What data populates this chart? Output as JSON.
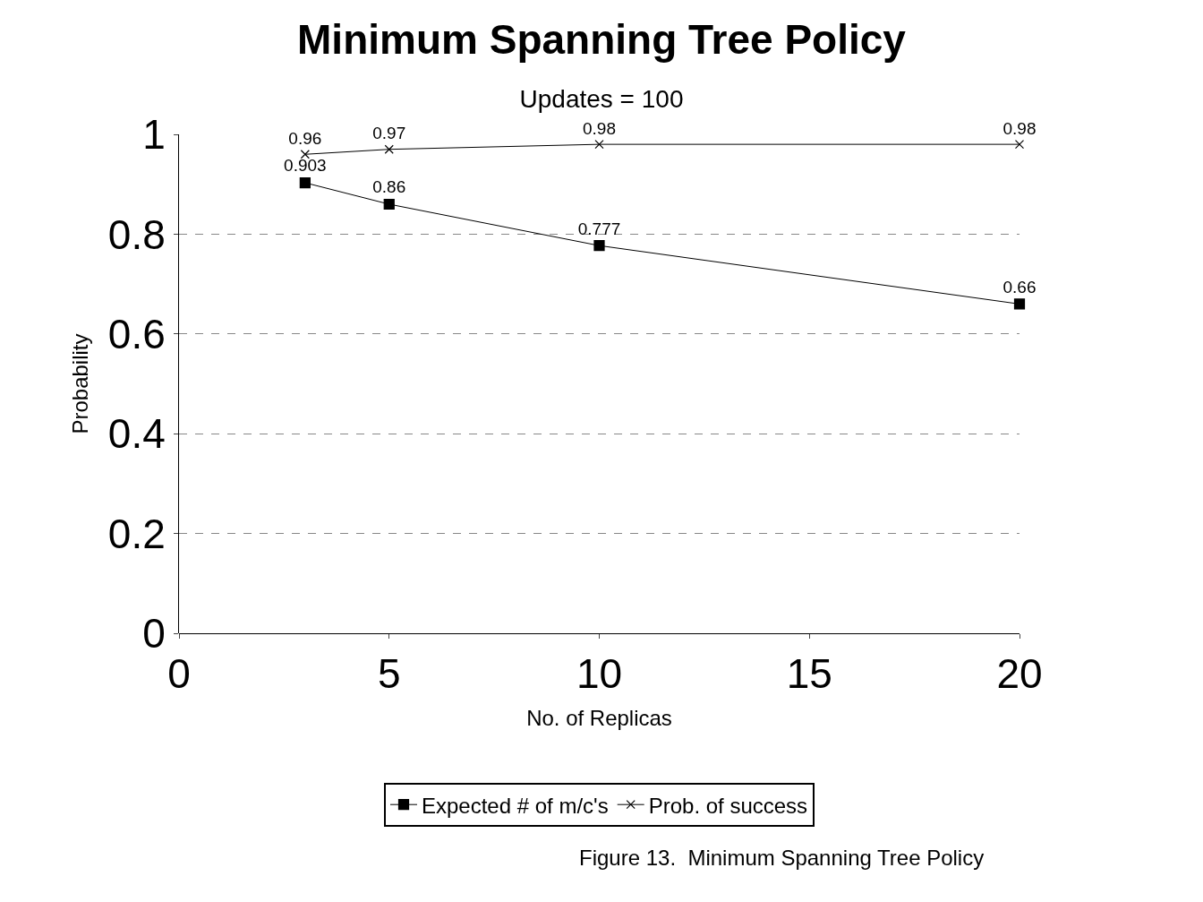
{
  "chart_data": {
    "type": "line",
    "title": "Minimum Spanning Tree Policy",
    "subtitle": "Updates = 100",
    "xlabel": "No. of Replicas",
    "ylabel": "Probability",
    "x": [
      3,
      5,
      10,
      20
    ],
    "series": [
      {
        "name": "Expected # of m/c's",
        "color": "#000000",
        "values": [
          0.903,
          0.86,
          0.777,
          0.66
        ],
        "marker": "square"
      },
      {
        "name": "Prob. of success",
        "color": "#000000",
        "values": [
          0.96,
          0.97,
          0.98,
          0.98
        ],
        "marker": "cross"
      }
    ],
    "xlim": [
      0,
      20
    ],
    "xticks": [
      0,
      5,
      10,
      15,
      20
    ],
    "ylim": [
      0,
      1
    ],
    "yticks": [
      0,
      {
        "value": 0.2,
        "label": "0.2"
      },
      {
        "value": 0.4,
        "label": "0.4"
      },
      {
        "value": 0.6,
        "label": "0.6"
      },
      {
        "value": 0.8,
        "label": "0.8"
      },
      1
    ],
    "grid": "y",
    "legend": "bottom",
    "data_labels": true,
    "line_style": "solid",
    "annotations": [
      "Figure 13.  Minimum Spanning Tree Policy"
    ]
  }
}
